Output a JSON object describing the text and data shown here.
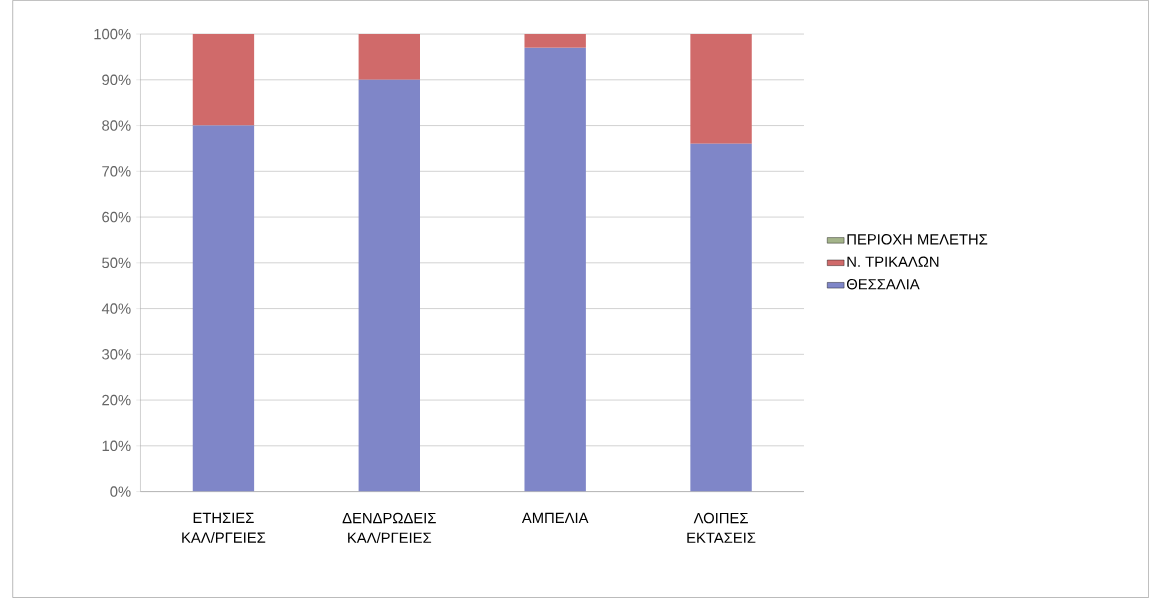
{
  "chart_data": {
    "type": "bar",
    "stacked": true,
    "grid": "y",
    "legend": "right",
    "categories": [
      "ΕΤΗΣΙΕΣ ΚΑΛ/ΡΓΕΙΕΣ",
      "ΔΕΝΔΡΩΔΕΙΣ ΚΑΛ/ΡΓΕΙΕΣ",
      "ΑΜΠΕΛΙΑ",
      "ΛΟΙΠΕΣ ΕΚΤΑΣΕΙΣ"
    ],
    "series": [
      {
        "name": "ΘΕΣΣΑΛΙΑ",
        "color": "#7f86c8",
        "values": [
          80,
          90,
          97,
          76
        ]
      },
      {
        "name": "Ν. ΤΡΙΚΑΛΩΝ",
        "color": "#d06a6a",
        "values": [
          20,
          10,
          3,
          24
        ]
      },
      {
        "name": "ΠΕΡΙΟΧΗ ΜΕΛΕΤΗΣ",
        "color": "#a4b48a",
        "values": [
          0,
          0,
          0,
          0
        ]
      }
    ],
    "ylim": [
      0,
      100
    ],
    "yticks": [
      {
        "value": 0,
        "label": "0%"
      },
      {
        "value": 10,
        "label": "10%"
      },
      {
        "value": 20,
        "label": "20%"
      },
      {
        "value": 30,
        "label": "30%"
      },
      {
        "value": 40,
        "label": "40%"
      },
      {
        "value": 50,
        "label": "50%"
      },
      {
        "value": 60,
        "label": "60%"
      },
      {
        "value": 70,
        "label": "70%"
      },
      {
        "value": 80,
        "label": "80%"
      },
      {
        "value": 90,
        "label": "90%"
      },
      {
        "value": 100,
        "label": "100%"
      }
    ]
  }
}
